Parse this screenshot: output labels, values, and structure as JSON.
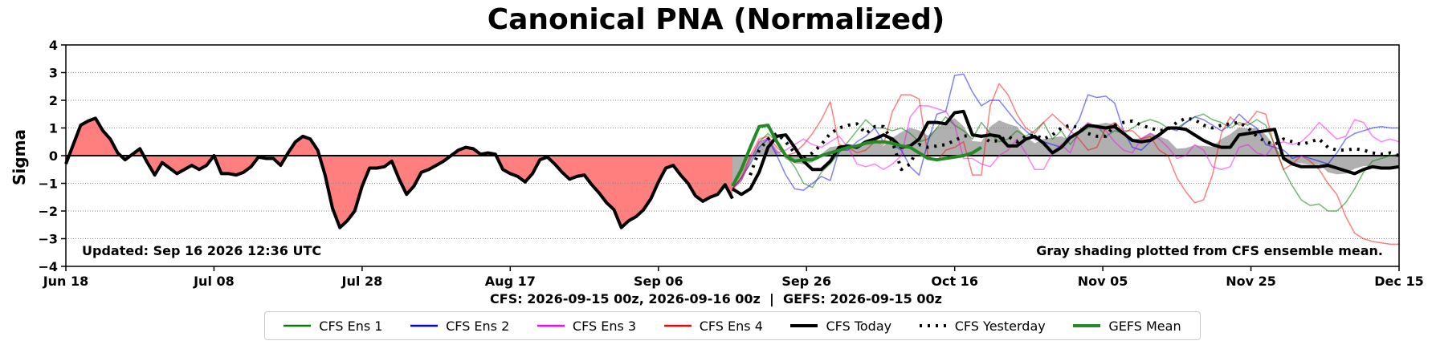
{
  "chart_data": {
    "type": "line",
    "title": "Canonical PNA (Normalized)",
    "ylabel": "Sigma",
    "xlabel": "",
    "ylim": [
      -4,
      4
    ],
    "yticks": [
      4,
      3,
      2,
      1,
      0,
      -1,
      -2,
      -3,
      -4
    ],
    "xlim": [
      "2026-06-18",
      "2026-12-15"
    ],
    "xticks": [
      "Jun 18",
      "Jul 08",
      "Jul 28",
      "Aug 17",
      "Sep 06",
      "Sep 26",
      "Oct 16",
      "Nov 05",
      "Nov 25",
      "Dec 15"
    ],
    "grid": "horizontal dotted",
    "legend_position": "bottom-center",
    "annotations": {
      "updated": "Updated: Sep 16 2026 12:36 UTC",
      "shading_note": "Gray shading plotted from CFS ensemble mean.",
      "runs": "CFS: 2026-09-15 00z, 2026-09-16 00z  |  GEFS: 2026-09-15 00z"
    },
    "colors": {
      "observed_positive_fill": "#ff7f7f",
      "observed_negative_fill": "#ff7f7f",
      "ensemble_mean_fill": "#b0b0b0"
    },
    "observed": {
      "start_day": 0,
      "values": [
        -0.3,
        0.4,
        1.1,
        1.25,
        1.35,
        0.9,
        0.6,
        0.1,
        -0.15,
        0.05,
        0.25,
        -0.25,
        -0.7,
        -0.25,
        -0.45,
        -0.65,
        -0.5,
        -0.35,
        -0.5,
        -0.35,
        0.0,
        -0.65,
        -0.65,
        -0.7,
        -0.6,
        -0.4,
        -0.05,
        -0.1,
        -0.1,
        -0.35,
        0.1,
        0.5,
        0.7,
        0.6,
        0.2,
        -0.7,
        -1.9,
        -2.6,
        -2.35,
        -2.0,
        -1.1,
        -0.45,
        -0.45,
        -0.4,
        -0.2,
        -0.85,
        -1.4,
        -1.1,
        -0.6,
        -0.5,
        -0.35,
        -0.2,
        0.0,
        0.2,
        0.3,
        0.25,
        0.05,
        0.1,
        0.05,
        -0.5,
        -0.65,
        -0.75,
        -0.95,
        -0.65,
        -0.15,
        -0.05,
        -0.3,
        -0.6,
        -0.85,
        -0.75,
        -0.7,
        -1.05,
        -1.35,
        -1.7,
        -1.95,
        -2.6,
        -2.35,
        -2.2,
        -1.95,
        -1.55,
        -0.95,
        -0.45,
        -0.35,
        -0.7,
        -1.0,
        -1.45,
        -1.65,
        -1.5,
        -1.4,
        -1.05,
        -1.55
      ]
    },
    "forecast_start_day": 90,
    "series": [
      {
        "name": "CFS Ens 1",
        "color": "#008000",
        "width": 1.5,
        "dash": "",
        "opacity": 0.55,
        "values": [
          -1.2,
          -0.9,
          -0.2,
          0.5,
          0.8,
          0.5,
          0.0,
          -0.4,
          -1.0,
          -1.15,
          -0.6,
          -0.3,
          0.1,
          0.5,
          0.9,
          1.3,
          1.0,
          1.0,
          0.9,
          1.0,
          0.8,
          0.5,
          0.6,
          1.0,
          1.4,
          1.1,
          0.9,
          0.6,
          1.2,
          0.8,
          0.5,
          0.6,
          0.9,
          0.7,
          0.9,
          1.2,
          0.6,
          0.9,
          0.4,
          0.8,
          1.0,
          1.1,
          0.7,
          0.9,
          0.8,
          1.0,
          1.2,
          1.3,
          1.2,
          1.0,
          1.0,
          1.2,
          1.4,
          1.5,
          1.3,
          1.2,
          1.0,
          1.2,
          1.1,
          1.3,
          1.1,
          0.4,
          -0.5,
          -1.1,
          -1.6,
          -1.8,
          -1.75,
          -2.0,
          -2.0,
          -1.7,
          -1.2,
          -0.6,
          -0.2,
          -0.1,
          0.0,
          0.05
        ]
      },
      {
        "name": "CFS Ens 2",
        "color": "#0000ff",
        "width": 1.5,
        "dash": "",
        "opacity": 0.5,
        "values": [
          -1.2,
          -0.8,
          -0.3,
          0.3,
          0.6,
          0.0,
          -0.7,
          -1.2,
          -1.25,
          -1.0,
          -0.75,
          -0.9,
          0.2,
          0.2,
          0.5,
          0.7,
          1.0,
          0.5,
          0.4,
          0.2,
          -0.4,
          -0.7,
          0.5,
          1.5,
          1.6,
          2.9,
          2.95,
          2.3,
          1.8,
          2.0,
          2.0,
          1.6,
          1.2,
          0.9,
          0.6,
          0.5,
          0.4,
          0.3,
          0.8,
          1.3,
          2.2,
          2.1,
          2.15,
          1.9,
          0.9,
          0.3,
          0.2,
          0.5,
          0.8,
          1.0,
          0.9,
          1.2,
          1.4,
          1.3,
          1.1,
          0.9,
          1.1,
          1.5,
          1.2,
          1.0,
          0.4,
          0.3,
          0.2,
          -0.1,
          0.0,
          -0.1,
          -0.2,
          -0.3,
          0.1,
          0.6,
          0.8,
          0.9,
          1.0,
          1.05,
          1.0,
          1.0
        ]
      },
      {
        "name": "CFS Ens 3",
        "color": "#ff00ff",
        "width": 1.5,
        "dash": "",
        "opacity": 0.5,
        "values": [
          -1.2,
          -0.9,
          -0.1,
          0.5,
          0.6,
          0.1,
          0.2,
          0.4,
          0.6,
          0.4,
          0.3,
          0.5,
          0.7,
          0.3,
          -0.3,
          -0.4,
          -0.3,
          -0.5,
          -0.3,
          0.0,
          1.4,
          1.8,
          1.8,
          1.7,
          1.6,
          1.1,
          -0.1,
          -0.1,
          -0.3,
          -0.4,
          0.0,
          0.2,
          0.6,
          0.1,
          -0.5,
          -0.5,
          0.1,
          0.4,
          0.1,
          0.9,
          1.2,
          1.0,
          0.9,
          0.5,
          0.2,
          0.1,
          0.6,
          0.8,
          0.6,
          0.3,
          -0.1,
          0.0,
          0.4,
          0.2,
          -0.4,
          -0.5,
          -0.4,
          0.3,
          0.4,
          0.1,
          0.0,
          0.4,
          0.5,
          0.4,
          0.5,
          0.8,
          1.2,
          0.9,
          0.6,
          0.7,
          1.3,
          1.2,
          0.7,
          0.5,
          0.6,
          0.5
        ]
      },
      {
        "name": "CFS Ens 4",
        "color": "#ff0000",
        "width": 1.5,
        "dash": "",
        "opacity": 0.5,
        "values": [
          -1.2,
          -0.8,
          0.0,
          0.6,
          0.7,
          0.3,
          0.0,
          0.1,
          0.4,
          0.8,
          1.3,
          1.95,
          0.4,
          0.3,
          0.1,
          0.2,
          0.5,
          0.4,
          1.6,
          2.2,
          2.2,
          2.05,
          0.0,
          -0.2,
          0.2,
          0.3,
          0.5,
          -0.7,
          -0.7,
          1.8,
          2.6,
          2.2,
          1.5,
          1.0,
          0.8,
          1.2,
          1.5,
          1.2,
          0.9,
          0.6,
          0.2,
          0.3,
          1.0,
          1.2,
          0.9,
          0.9,
          0.6,
          0.7,
          0.2,
          0.0,
          -0.8,
          -1.3,
          -1.7,
          -1.6,
          -0.7,
          0.8,
          1.4,
          1.1,
          1.2,
          1.6,
          1.5,
          0.3,
          -0.5,
          -0.3,
          0.0,
          -0.2,
          -0.5,
          -1.0,
          -1.4,
          -2.2,
          -2.8,
          -3.0,
          -3.1,
          -3.15,
          -3.2,
          -3.2
        ]
      },
      {
        "name": "CFS Today",
        "color": "#000000",
        "width": 4,
        "dash": "",
        "opacity": 1,
        "values": [
          -1.2,
          -1.4,
          -1.2,
          -0.6,
          0.3,
          0.7,
          0.75,
          0.3,
          -0.2,
          -0.5,
          -0.5,
          -0.2,
          0.3,
          0.35,
          0.3,
          0.5,
          0.6,
          0.75,
          0.6,
          0.3,
          0.35,
          0.6,
          1.2,
          1.2,
          1.15,
          1.55,
          1.6,
          0.75,
          0.7,
          0.75,
          0.7,
          0.35,
          0.35,
          0.6,
          0.7,
          0.45,
          0.1,
          0.3,
          0.65,
          0.85,
          1.1,
          1.05,
          1.0,
          1.05,
          0.8,
          0.55,
          0.5,
          0.55,
          0.75,
          1.0,
          1.0,
          0.95,
          0.75,
          0.55,
          0.4,
          0.3,
          0.3,
          0.75,
          0.8,
          0.85,
          0.9,
          0.95,
          -0.1,
          -0.3,
          -0.4,
          -0.4,
          -0.4,
          -0.35,
          -0.45,
          -0.55,
          -0.65,
          -0.5,
          -0.4,
          -0.45,
          -0.45,
          -0.4
        ]
      },
      {
        "name": "CFS Yesterday",
        "color": "#000000",
        "width": 4,
        "dash": "3,7",
        "opacity": 1,
        "values": [
          null,
          null,
          -0.7,
          0.2,
          0.6,
          0.8,
          0.5,
          0.1,
          -0.1,
          0.1,
          0.4,
          0.8,
          1.0,
          1.1,
          1.15,
          0.8,
          1.05,
          1.05,
          0.5,
          -0.5,
          -0.3,
          0.4,
          0.3,
          0.35,
          0.4,
          0.55,
          0.7,
          0.75,
          0.7,
          0.5,
          0.55,
          0.7,
          0.5,
          0.7,
          0.75,
          0.6,
          0.75,
          1.0,
          1.1,
          1.0,
          0.8,
          0.7,
          0.7,
          1.1,
          1.2,
          1.25,
          1.1,
          1.0,
          0.9,
          0.95,
          1.2,
          1.35,
          1.3,
          1.1,
          1.0,
          1.1,
          1.15,
          1.2,
          1.0,
          0.7,
          0.5,
          0.4,
          0.6,
          0.5,
          0.4,
          0.5,
          0.6,
          0.3,
          0.2,
          0.2,
          0.25,
          0.2,
          0.1,
          0.05,
          0.1,
          0.0
        ]
      },
      {
        "name": "GEFS Mean",
        "color": "#228b22",
        "width": 4,
        "dash": "",
        "opacity": 1,
        "values": [
          -1.1,
          -0.5,
          0.3,
          1.05,
          1.1,
          0.5,
          0.0,
          -0.2,
          -0.15,
          -0.15,
          0.0,
          0.1,
          0.2,
          0.3,
          0.35,
          0.45,
          0.5,
          0.5,
          0.45,
          0.35,
          0.3,
          0.1,
          -0.1,
          -0.15,
          -0.1,
          -0.05,
          0.0,
          0.1,
          0.3
        ]
      }
    ]
  }
}
